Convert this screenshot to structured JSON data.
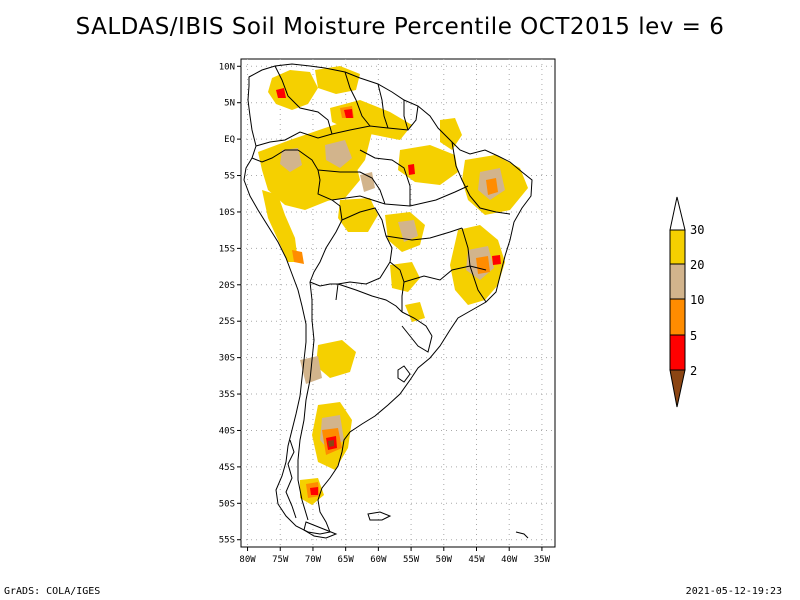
{
  "title": "SALDAS/IBIS Soil Moisture Percentile OCT2015 lev = 6",
  "footer": {
    "left": "GrADS: COLA/IGES",
    "right": "2021-05-12-19:23"
  },
  "map": {
    "lat_labels": [
      "10N",
      "5N",
      "EQ",
      "5S",
      "10S",
      "15S",
      "20S",
      "25S",
      "30S",
      "35S",
      "40S",
      "45S",
      "50S",
      "55S"
    ],
    "lon_labels": [
      "80W",
      "75W",
      "70W",
      "65W",
      "60W",
      "55W",
      "50W",
      "45W",
      "40W",
      "35W"
    ],
    "lat_values": [
      10,
      5,
      0,
      -5,
      -10,
      -15,
      -20,
      -25,
      -30,
      -35,
      -40,
      -45,
      -50,
      -55
    ],
    "lon_values": [
      -80,
      -75,
      -70,
      -65,
      -60,
      -55,
      -50,
      -45,
      -40,
      -35
    ],
    "lat_range": [
      -56,
      11
    ],
    "lon_range": [
      -81,
      -33
    ]
  },
  "legend": {
    "labels": [
      "30",
      "20",
      "10",
      "5",
      "2"
    ],
    "colors": {
      "above30": "#ffffff",
      "c20_30": "#f5d000",
      "c10_20": "#d2b48c",
      "c5_10": "#ff8c00",
      "c2_5": "#ff0000",
      "below2": "#8b4513"
    }
  },
  "colors": {
    "outline": "#000000",
    "grid": "#aaaaaa"
  }
}
